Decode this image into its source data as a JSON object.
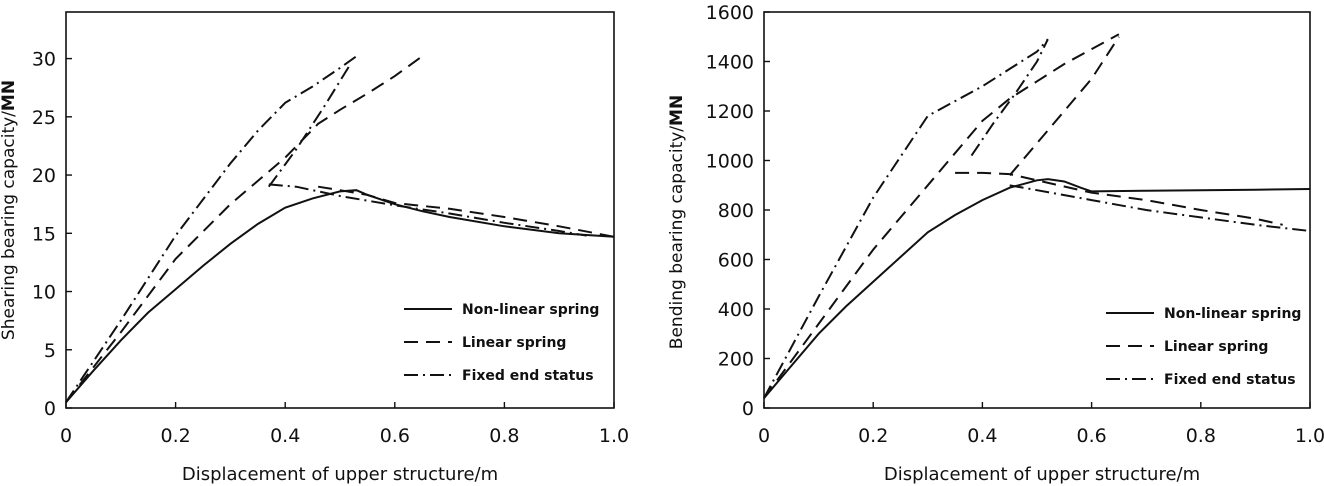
{
  "chart_data": [
    {
      "type": "line",
      "xlabel": "Displacement of upper structure/m",
      "ylabel": "Shearing bearing capacity/",
      "ylabel_unit": "MN",
      "xlim": [
        0,
        1.0
      ],
      "ylim": [
        0,
        34
      ],
      "xticks": [
        0,
        0.2,
        0.4,
        0.6,
        0.8,
        1.0
      ],
      "xtick_labels": [
        "0",
        "0.2",
        "0.4",
        "0.6",
        "0.8",
        "1.0"
      ],
      "yticks": [
        0,
        5,
        10,
        15,
        20,
        25,
        30
      ],
      "ytick_labels": [
        "0",
        "5",
        "10",
        "15",
        "20",
        "25",
        "30"
      ],
      "grid": false,
      "legend_position": "bottom-right",
      "series": [
        {
          "name": "Non-linear spring",
          "style": "solid",
          "x": [
            0,
            0.05,
            0.1,
            0.15,
            0.2,
            0.25,
            0.3,
            0.35,
            0.4,
            0.45,
            0.5,
            0.53,
            0.55,
            0.6,
            0.65,
            0.7,
            0.8,
            0.9,
            1.0
          ],
          "y": [
            0.5,
            3.2,
            5.8,
            8.2,
            10.2,
            12.2,
            14.1,
            15.8,
            17.2,
            18.0,
            18.6,
            18.7,
            18.3,
            17.5,
            16.9,
            16.4,
            15.6,
            15.0,
            14.7
          ]
        },
        {
          "name": "Linear spring",
          "style": "dashed",
          "x": [
            0,
            0.1,
            0.2,
            0.3,
            0.4,
            0.46,
            0.5,
            0.55,
            0.6,
            0.65,
            0.46,
            0.5,
            0.55,
            0.6,
            0.7,
            0.8,
            0.9,
            1.0
          ],
          "y": [
            0.5,
            6.5,
            12.8,
            17.5,
            21.5,
            24.4,
            25.6,
            27.0,
            28.5,
            30.2,
            19.0,
            18.7,
            18.3,
            17.6,
            17.1,
            16.4,
            15.6,
            14.7
          ]
        },
        {
          "name": "Fixed end status",
          "style": "dash-dot",
          "x": [
            0,
            0.1,
            0.2,
            0.3,
            0.35,
            0.4,
            0.45,
            0.5,
            0.53,
            0.37,
            0.42,
            0.47,
            0.52,
            0.37,
            0.42,
            0.5,
            0.6,
            0.7,
            0.8,
            0.9,
            0.95
          ],
          "y": [
            0.5,
            7.5,
            14.8,
            21.0,
            23.8,
            26.2,
            27.6,
            29.2,
            30.2,
            19.0,
            22.2,
            25.8,
            29.6,
            19.2,
            19.0,
            18.2,
            17.4,
            16.7,
            15.9,
            15.2,
            14.8
          ]
        }
      ]
    },
    {
      "type": "line",
      "xlabel": "Displacement of upper structure/m",
      "ylabel": "Bending bearing capacity/",
      "ylabel_unit": "MN",
      "xlim": [
        0,
        1.0
      ],
      "ylim": [
        0,
        1600
      ],
      "xticks": [
        0,
        0.2,
        0.4,
        0.6,
        0.8,
        1.0
      ],
      "xtick_labels": [
        "0",
        "0.2",
        "0.4",
        "0.6",
        "0.8",
        "1.0"
      ],
      "yticks": [
        0,
        200,
        400,
        600,
        800,
        1000,
        1200,
        1400,
        1600
      ],
      "ytick_labels": [
        "0",
        "200",
        "400",
        "600",
        "800",
        "1000",
        "1200",
        "1400",
        "1600"
      ],
      "grid": false,
      "legend_position": "bottom-right",
      "series": [
        {
          "name": "Non-linear spring",
          "style": "solid",
          "x": [
            0,
            0.05,
            0.1,
            0.15,
            0.2,
            0.25,
            0.3,
            0.35,
            0.4,
            0.45,
            0.5,
            0.52,
            0.55,
            0.58,
            0.6,
            0.7,
            0.8,
            0.9,
            1.0
          ],
          "y": [
            40,
            170,
            300,
            410,
            510,
            610,
            710,
            780,
            840,
            890,
            920,
            925,
            915,
            890,
            875,
            878,
            880,
            882,
            885
          ]
        },
        {
          "name": "Linear spring",
          "style": "dashed",
          "x": [
            0,
            0.1,
            0.2,
            0.3,
            0.4,
            0.45,
            0.5,
            0.55,
            0.6,
            0.65,
            0.45,
            0.5,
            0.55,
            0.6,
            0.65,
            0.35,
            0.4,
            0.45,
            0.5,
            0.6,
            0.7,
            0.8,
            0.9,
            0.95
          ],
          "y": [
            40,
            340,
            640,
            900,
            1160,
            1250,
            1320,
            1390,
            1450,
            1510,
            940,
            1070,
            1200,
            1330,
            1500,
            950,
            950,
            945,
            920,
            870,
            840,
            800,
            765,
            740
          ]
        },
        {
          "name": "Fixed end status",
          "style": "dash-dot",
          "x": [
            0,
            0.1,
            0.2,
            0.3,
            0.4,
            0.45,
            0.5,
            0.52,
            0.38,
            0.42,
            0.46,
            0.5,
            0.52,
            0.45,
            0.5,
            0.6,
            0.7,
            0.8,
            0.9,
            1.0
          ],
          "y": [
            40,
            450,
            850,
            1180,
            1300,
            1370,
            1440,
            1490,
            1020,
            1150,
            1270,
            1400,
            1490,
            900,
            880,
            840,
            800,
            770,
            740,
            715
          ]
        }
      ]
    }
  ]
}
